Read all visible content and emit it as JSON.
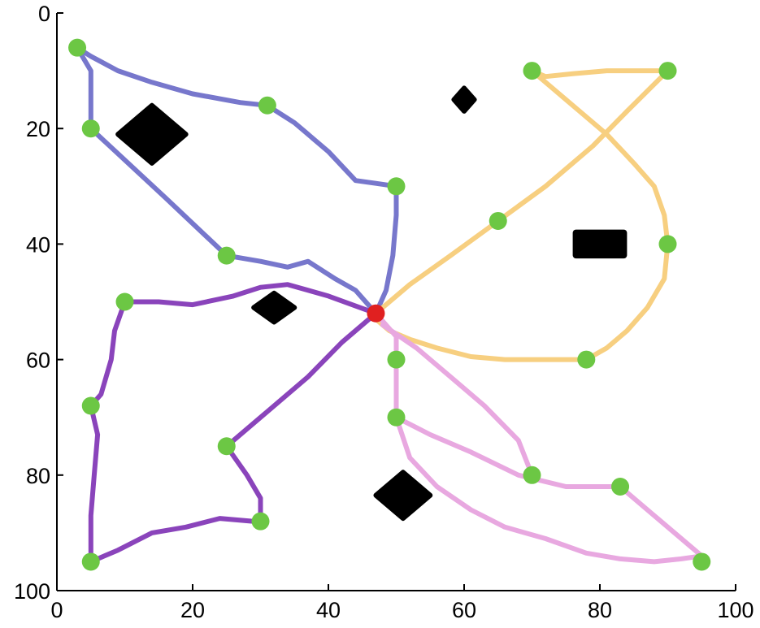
{
  "chart_data": {
    "type": "line",
    "title": "",
    "xlabel": "",
    "ylabel": "",
    "xlim": [
      0,
      100
    ],
    "ylim": [
      0,
      100
    ],
    "y_axis_inverted": true,
    "grid": false,
    "legend": "none",
    "x_ticks": [
      "0",
      "20",
      "40",
      "60",
      "80",
      "100"
    ],
    "y_ticks": [
      "0",
      "20",
      "40",
      "60",
      "80",
      "100"
    ],
    "colors": {
      "axis": "#000000",
      "waypoint": "#6cc744",
      "start": "#e02020",
      "obstacle": "#000000"
    },
    "start_point": [
      47,
      52
    ],
    "series": [
      {
        "color": "#7777cc",
        "path": [
          [
            47,
            52
          ],
          [
            44,
            48
          ],
          [
            41,
            46
          ],
          [
            37,
            43
          ],
          [
            34,
            44
          ],
          [
            30,
            43
          ],
          [
            25,
            42
          ],
          [
            16,
            32
          ],
          [
            5,
            20
          ],
          [
            5,
            15
          ],
          [
            5,
            10
          ],
          [
            3,
            6
          ],
          [
            5,
            7.5
          ],
          [
            9,
            10
          ],
          [
            14,
            12
          ],
          [
            20,
            14
          ],
          [
            27,
            15.5
          ],
          [
            31,
            16
          ],
          [
            35,
            19
          ],
          [
            40,
            24
          ],
          [
            44,
            29
          ],
          [
            47,
            29.5
          ],
          [
            50,
            30
          ],
          [
            50,
            35
          ],
          [
            49.5,
            42
          ],
          [
            48.5,
            48
          ],
          [
            47,
            52
          ]
        ],
        "waypoints": [
          [
            3,
            6
          ],
          [
            5,
            20
          ],
          [
            31,
            16
          ],
          [
            50,
            30
          ],
          [
            25,
            42
          ]
        ]
      },
      {
        "color": "#f7cf80",
        "path": [
          [
            47,
            52
          ],
          [
            52,
            47
          ],
          [
            58,
            42
          ],
          [
            65,
            36
          ],
          [
            72,
            30
          ],
          [
            79,
            23
          ],
          [
            84,
            17
          ],
          [
            90,
            10
          ],
          [
            86,
            10
          ],
          [
            81,
            10
          ],
          [
            76,
            10.5
          ],
          [
            72,
            11
          ],
          [
            70,
            10
          ],
          [
            73,
            13
          ],
          [
            77,
            17
          ],
          [
            81,
            21
          ],
          [
            85,
            26
          ],
          [
            88,
            30
          ],
          [
            89.5,
            35
          ],
          [
            90,
            40
          ],
          [
            89.5,
            46
          ],
          [
            87,
            51
          ],
          [
            84,
            55
          ],
          [
            81,
            58
          ],
          [
            78,
            60
          ],
          [
            72,
            60
          ],
          [
            66,
            60
          ],
          [
            61,
            59.5
          ],
          [
            56,
            58
          ],
          [
            52,
            56.5
          ],
          [
            49,
            55
          ],
          [
            47,
            53
          ]
        ],
        "waypoints": [
          [
            70,
            10
          ],
          [
            90,
            10
          ],
          [
            65,
            36
          ],
          [
            90,
            40
          ],
          [
            78,
            60
          ]
        ]
      },
      {
        "color": "#e8a8e0",
        "path": [
          [
            47,
            52
          ],
          [
            50,
            56
          ],
          [
            50,
            60
          ],
          [
            50,
            66
          ],
          [
            50,
            70
          ],
          [
            55,
            73
          ],
          [
            61,
            76
          ],
          [
            68,
            80
          ],
          [
            75,
            82
          ],
          [
            83,
            82
          ],
          [
            88,
            87
          ],
          [
            95,
            94
          ],
          [
            92,
            94.5
          ],
          [
            88,
            95
          ],
          [
            83,
            94.5
          ],
          [
            78,
            93.5
          ],
          [
            72,
            91
          ],
          [
            66,
            89
          ],
          [
            61,
            86
          ],
          [
            56,
            82
          ],
          [
            52,
            77
          ],
          [
            50,
            70
          ]
        ],
        "extra_path": [
          [
            48,
            54
          ],
          [
            53,
            58
          ],
          [
            58,
            63
          ],
          [
            63,
            68
          ],
          [
            68,
            74
          ],
          [
            70,
            80
          ]
        ],
        "waypoints": [
          [
            50,
            60
          ],
          [
            50,
            70
          ],
          [
            70,
            80
          ],
          [
            83,
            82
          ],
          [
            95,
            95
          ]
        ]
      },
      {
        "color": "#8a44bb",
        "path": [
          [
            47,
            52
          ],
          [
            40,
            49
          ],
          [
            34,
            47
          ],
          [
            30,
            47.5
          ],
          [
            26,
            49
          ],
          [
            20,
            50.5
          ],
          [
            15,
            50
          ],
          [
            10,
            50
          ],
          [
            8.5,
            55
          ],
          [
            8,
            60
          ],
          [
            6.5,
            66
          ],
          [
            5,
            68
          ],
          [
            6,
            73
          ],
          [
            5.5,
            80
          ],
          [
            5,
            87
          ],
          [
            5,
            95
          ],
          [
            9,
            93
          ],
          [
            14,
            90
          ],
          [
            19,
            89
          ],
          [
            24,
            87.5
          ],
          [
            29,
            88
          ],
          [
            30,
            88
          ],
          [
            30,
            84
          ],
          [
            28,
            80
          ],
          [
            25,
            75
          ],
          [
            31,
            69
          ],
          [
            37,
            63
          ],
          [
            42,
            57
          ],
          [
            47,
            52
          ]
        ],
        "waypoints": [
          [
            10,
            50
          ],
          [
            5,
            68
          ],
          [
            5,
            95
          ],
          [
            25,
            75
          ],
          [
            30,
            88
          ]
        ]
      }
    ],
    "obstacles": [
      {
        "shape": "diamond",
        "center": [
          14,
          21
        ],
        "rx": 5,
        "ry": 5
      },
      {
        "shape": "diamond",
        "center": [
          60,
          15
        ],
        "rx": 1.5,
        "ry": 2
      },
      {
        "shape": "rect",
        "center": [
          80,
          40
        ],
        "rx": 4,
        "ry": 2.5
      },
      {
        "shape": "diamond",
        "center": [
          32,
          51
        ],
        "rx": 3,
        "ry": 2.5
      },
      {
        "shape": "diamond",
        "center": [
          51,
          83.5
        ],
        "rx": 4,
        "ry": 4
      }
    ]
  }
}
